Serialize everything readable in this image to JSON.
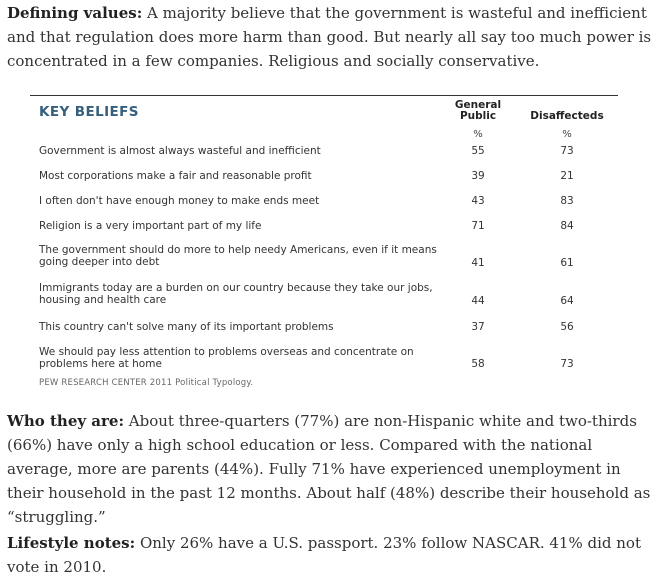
{
  "p1": {
    "label": "Defining values:",
    "text": " A majority believe that the government is wasteful and inefficient and that regulation does more harm than good. But nearly all say too much power is concentrated in a few companies. Religious and socially conservative."
  },
  "table": {
    "title": "KEY BELIEFS",
    "col1_head": "General Public",
    "col2_head": "Disaffecteds",
    "col1_unit": "%",
    "col2_unit": "%",
    "rows": [
      {
        "label": "Government is almost always wasteful and inefficient",
        "gp": "55",
        "dis": "73"
      },
      {
        "label": "Most corporations make a fair and reasonable profit",
        "gp": "39",
        "dis": "21"
      },
      {
        "label": "I often don't have enough money to make ends meet",
        "gp": "43",
        "dis": "83"
      },
      {
        "label": "Religion is a very important part of my life",
        "gp": "71",
        "dis": "84"
      },
      {
        "label": "The government should do more to help needy Americans, even if it means going deeper into debt",
        "gp": "41",
        "dis": "61"
      },
      {
        "label": "Immigrants today are a burden on our country because they take our jobs, housing and health care",
        "gp": "44",
        "dis": "64"
      },
      {
        "label": "This country can't solve many of its important problems",
        "gp": "37",
        "dis": "56"
      },
      {
        "label": "We should pay less attention to problems overseas and concentrate on problems here at home",
        "gp": "58",
        "dis": "73"
      }
    ],
    "source": "PEW RESEARCH CENTER 2011 Political Typology."
  },
  "p2": {
    "label": "Who they are:",
    "text": " About three-quarters (77%) are non-Hispanic white and two-thirds (66%) have only a high school education or less. Compared with the national average, more are parents (44%). Fully 71% have experienced unemployment in their household in the past 12 months. About half (48%) describe their household as “struggling.”"
  },
  "p3": {
    "label": "Lifestyle notes:",
    "text": " Only 26% have a U.S. passport. 23% follow NASCAR. 41% did not vote in 2010."
  }
}
